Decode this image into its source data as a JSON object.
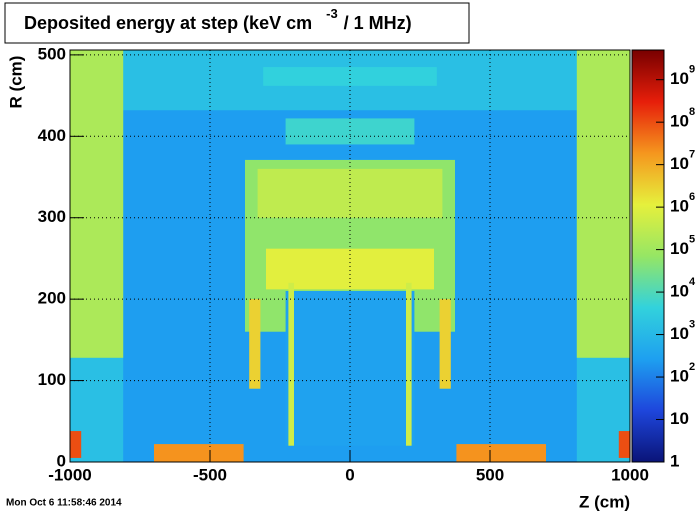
{
  "chart_data": {
    "type": "heatmap",
    "title": "Deposited energy at step (keV cm",
    "title_exponent": "-3",
    "title_suffix": "/ 1 MHz)",
    "x_label": "Z (cm)",
    "y_label": "R (cm)",
    "timestamp": "Mon Oct  6 11:58:46 2014",
    "xlim": [
      -1000,
      1000
    ],
    "xticks": [
      -1000,
      -500,
      0,
      500,
      1000
    ],
    "ylim": [
      0,
      506
    ],
    "yticks": [
      0,
      100,
      200,
      300,
      400,
      500
    ],
    "grid": true,
    "zlim": [
      1,
      5000000000
    ],
    "zlog": true,
    "zticks": [
      {
        "value": 1,
        "label": "1"
      },
      {
        "value": 10,
        "label": "10"
      },
      {
        "value": 100,
        "label": "10",
        "exponent": "2"
      },
      {
        "value": 1000,
        "label": "10",
        "exponent": "3"
      },
      {
        "value": 10000,
        "label": "10",
        "exponent": "4"
      },
      {
        "value": 100000,
        "label": "10",
        "exponent": "5"
      },
      {
        "value": 1000000,
        "label": "10",
        "exponent": "6"
      },
      {
        "value": 10000000,
        "label": "10",
        "exponent": "7"
      },
      {
        "value": 100000000,
        "label": "10",
        "exponent": "8"
      },
      {
        "value": 1000000000,
        "label": "10",
        "exponent": "9"
      }
    ],
    "colormap": [
      "#0a1478",
      "#1e46dc",
      "#1ea0f0",
      "#32d2dc",
      "#96e664",
      "#e6f03c",
      "#f5961e",
      "#e61e0a",
      "#780000"
    ],
    "regions": [
      {
        "z": [
          -1000,
          1000
        ],
        "r": [
          0,
          506
        ],
        "value": 1500
      },
      {
        "z": [
          -810,
          810
        ],
        "r": [
          0,
          432
        ],
        "value": 250
      },
      {
        "z": [
          -1000,
          -810
        ],
        "r": [
          128,
          506
        ],
        "value": 150000
      },
      {
        "z": [
          810,
          1000
        ],
        "r": [
          128,
          506
        ],
        "value": 150000
      },
      {
        "z": [
          -310,
          310
        ],
        "r": [
          462,
          485
        ],
        "value": 4000
      },
      {
        "z": [
          -230,
          230
        ],
        "r": [
          390,
          422
        ],
        "value": 6000
      },
      {
        "z": [
          -375,
          375
        ],
        "r": [
          160,
          371
        ],
        "value": 60000
      },
      {
        "z": [
          -330,
          330
        ],
        "r": [
          300,
          360
        ],
        "value": 300000
      },
      {
        "z": [
          -300,
          300
        ],
        "r": [
          212,
          262
        ],
        "value": 1000000
      },
      {
        "z": [
          -230,
          230
        ],
        "r": [
          20,
          210
        ],
        "value": 300
      },
      {
        "z": [
          -360,
          -320
        ],
        "r": [
          90,
          200
        ],
        "value": 3000000
      },
      {
        "z": [
          320,
          360
        ],
        "r": [
          90,
          200
        ],
        "value": 3000000
      },
      {
        "z": [
          -220,
          -200
        ],
        "r": [
          20,
          220
        ],
        "value": 500000
      },
      {
        "z": [
          200,
          220
        ],
        "r": [
          20,
          220
        ],
        "value": 500000
      },
      {
        "z": [
          -700,
          -380
        ],
        "r": [
          0,
          22
        ],
        "value": 20000000
      },
      {
        "z": [
          380,
          700
        ],
        "r": [
          0,
          22
        ],
        "value": 20000000
      },
      {
        "z": [
          -1000,
          -960
        ],
        "r": [
          5,
          38
        ],
        "value": 100000000
      },
      {
        "z": [
          960,
          1000
        ],
        "r": [
          5,
          38
        ],
        "value": 100000000
      }
    ]
  }
}
